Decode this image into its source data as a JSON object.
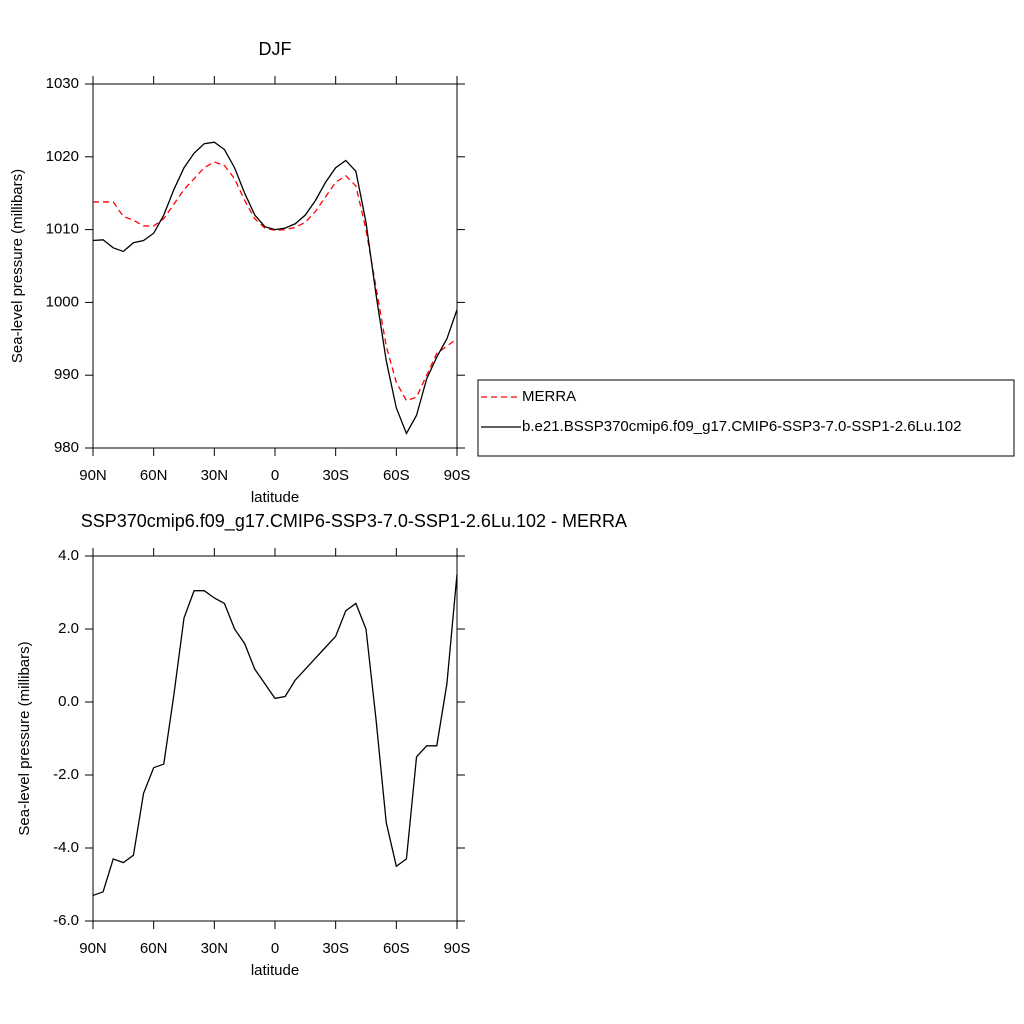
{
  "chart_data": [
    {
      "type": "line",
      "title": "DJF",
      "xlabel": "latitude",
      "ylabel": "Sea-level pressure (millibars)",
      "x": [
        90,
        85,
        80,
        75,
        70,
        65,
        60,
        55,
        50,
        45,
        40,
        35,
        30,
        25,
        20,
        15,
        10,
        5,
        0,
        -5,
        -10,
        -15,
        -20,
        -25,
        -30,
        -35,
        -40,
        -45,
        -50,
        -55,
        -60,
        -65,
        -70,
        -75,
        -80,
        -85,
        -90
      ],
      "xlim": [
        90,
        -90
      ],
      "xticks": [
        {
          "value": 90,
          "label": "90N"
        },
        {
          "value": 60,
          "label": "60N"
        },
        {
          "value": 30,
          "label": "30N"
        },
        0,
        {
          "value": -30,
          "label": "30S"
        },
        {
          "value": -60,
          "label": "60S"
        },
        {
          "value": -90,
          "label": "90S"
        }
      ],
      "ylim": [
        980,
        1030
      ],
      "yticks": [
        980,
        990,
        1000,
        1010,
        1020,
        1030
      ],
      "legend_position": "right",
      "series": [
        {
          "name": "MERRA",
          "color": "#ff0000",
          "style": "dashed",
          "values": [
            1013.8,
            1013.8,
            1013.8,
            1011.8,
            1011.3,
            1010.5,
            1010.5,
            1011.5,
            1013.5,
            1015.5,
            1017,
            1018.5,
            1019.3,
            1018.8,
            1017,
            1014,
            1011.5,
            1010.2,
            1009.9,
            1010,
            1010.3,
            1011,
            1012.5,
            1014.5,
            1016.5,
            1017.4,
            1016,
            1010,
            1002,
            994,
            989,
            986.5,
            987,
            990,
            993,
            994,
            995
          ]
        },
        {
          "name": "b.e21.BSSP370cmip6.f09_g17.CMIP6-SSP3-7.0-SSP1-2.6Lu.102",
          "color": "#000000",
          "style": "solid",
          "values": [
            1008.5,
            1008.6,
            1007.5,
            1007,
            1008.2,
            1008.5,
            1009.5,
            1012,
            1015.5,
            1018.5,
            1020.5,
            1021.8,
            1022,
            1021,
            1018.5,
            1015,
            1012,
            1010.4,
            1010,
            1010.2,
            1010.8,
            1012,
            1014,
            1016.5,
            1018.5,
            1019.5,
            1018,
            1011,
            1001,
            992,
            985.5,
            982,
            984.5,
            989.5,
            992.5,
            995,
            999
          ]
        }
      ]
    },
    {
      "type": "line",
      "title": "SSP370cmip6.f09_g17.CMIP6-SSP3-7.0-SSP1-2.6Lu.102 - MERRA",
      "xlabel": "latitude",
      "ylabel": "Sea-level pressure (millibars)",
      "x": [
        90,
        85,
        80,
        75,
        70,
        65,
        60,
        55,
        50,
        45,
        40,
        35,
        30,
        25,
        20,
        15,
        10,
        5,
        0,
        -5,
        -10,
        -15,
        -20,
        -25,
        -30,
        -35,
        -40,
        -45,
        -50,
        -55,
        -60,
        -65,
        -70,
        -75,
        -80,
        -85,
        -90
      ],
      "xlim": [
        90,
        -90
      ],
      "xticks": [
        {
          "value": 90,
          "label": "90N"
        },
        {
          "value": 60,
          "label": "60N"
        },
        {
          "value": 30,
          "label": "30N"
        },
        0,
        {
          "value": -30,
          "label": "30S"
        },
        {
          "value": -60,
          "label": "60S"
        },
        {
          "value": -90,
          "label": "90S"
        }
      ],
      "ylim": [
        -6,
        4
      ],
      "yticks": [
        {
          "value": -6,
          "label": "-6.0"
        },
        {
          "value": -4,
          "label": "-4.0"
        },
        {
          "value": -2,
          "label": "-2.0"
        },
        {
          "value": 0,
          "label": "0.0"
        },
        {
          "value": 2,
          "label": "2.0"
        },
        {
          "value": 4,
          "label": "4.0"
        }
      ],
      "series": [
        {
          "color": "#000000",
          "style": "solid",
          "values": [
            -5.3,
            -5.2,
            -4.3,
            -4.4,
            -4.2,
            -2.5,
            -1.8,
            -1.7,
            0.2,
            2.3,
            3.05,
            3.05,
            2.85,
            2.7,
            2,
            1.6,
            0.9,
            0.5,
            0.1,
            0.15,
            0.6,
            0.9,
            1.2,
            1.5,
            1.8,
            2.5,
            2.7,
            2,
            -0.5,
            -3.3,
            -4.5,
            -4.3,
            -1.5,
            -1.2,
            -1.2,
            0.5,
            3.5
          ]
        }
      ]
    }
  ]
}
